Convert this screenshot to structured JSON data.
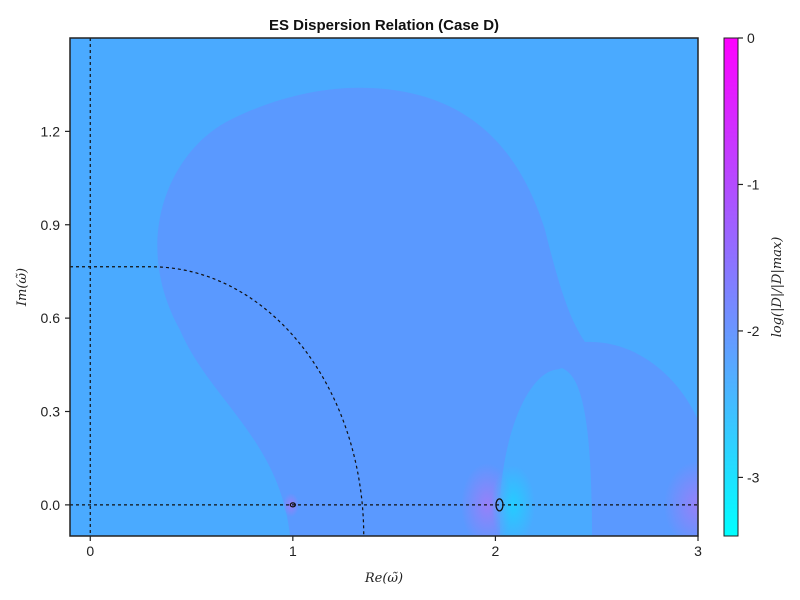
{
  "chart_data": {
    "type": "heatmap",
    "title": "ES Dispersion Relation (Case D)",
    "xlabel": "Re(ω̃)",
    "ylabel": "Im(ω̃)",
    "xlim": [
      -0.1,
      3.0
    ],
    "ylim": [
      -0.1,
      1.5
    ],
    "x_ticks": [
      0,
      1,
      2,
      3
    ],
    "x_tick_labels": [
      "0",
      "1",
      "2",
      "3"
    ],
    "y_ticks": [
      0.0,
      0.3,
      0.6,
      0.9,
      1.2
    ],
    "y_tick_labels": [
      "0.0",
      "0.3",
      "0.6",
      "0.9",
      "1.2"
    ],
    "grid": false,
    "colorbar": {
      "label": "log(|D|/|D|max)",
      "range": [
        -3.4,
        0
      ],
      "ticks": [
        0,
        -1,
        -2,
        -3
      ],
      "tick_labels": [
        "0",
        "-1",
        "-2",
        "-3"
      ],
      "colormap": [
        "#00ffff",
        "#ff00ff"
      ]
    },
    "reference_lines": {
      "vertical_at_x": 0,
      "horizontal_at_y": 0,
      "quarter_ellipse": {
        "center": [
          0.3,
          -0.1
        ],
        "rx": 1.05,
        "ry": 0.865
      }
    },
    "zero_contours": [
      {
        "x": 1.0,
        "y": 0.0
      },
      {
        "x": 2.02,
        "y": 0.0
      }
    ],
    "region_colors": {
      "background": "#4aaaff",
      "lobe": "#5a99ff",
      "cyan_spot": "#20d0ff",
      "magenta_spot": "#9a7ff8"
    }
  }
}
